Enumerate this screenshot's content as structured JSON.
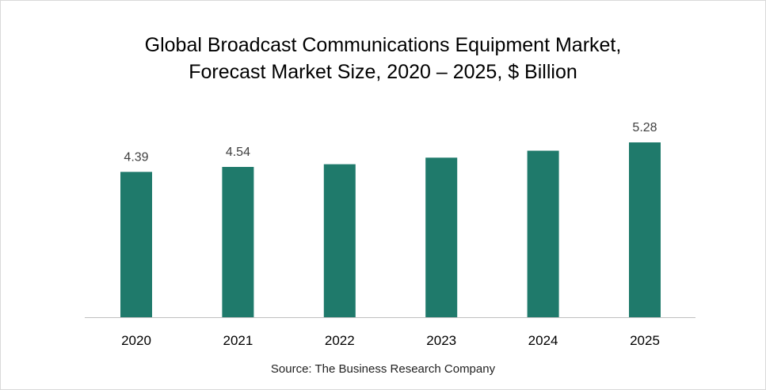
{
  "chart_data": {
    "type": "bar",
    "title_line1": "Global Broadcast Communications Equipment Market,",
    "title_line2": "Forecast Market Size, 2020 – 2025, $ Billion",
    "categories": [
      "2020",
      "2021",
      "2022",
      "2023",
      "2024",
      "2025"
    ],
    "values": [
      4.39,
      4.54,
      4.62,
      4.82,
      5.03,
      5.28
    ],
    "data_labels": [
      "4.39",
      "4.54",
      "",
      "",
      "",
      "5.28"
    ],
    "bar_color": "#1f7a6b",
    "grid": false,
    "xlabel": "",
    "ylabel": "",
    "ylim": [
      0,
      5.8
    ],
    "source": "Source: The Business Research Company"
  }
}
